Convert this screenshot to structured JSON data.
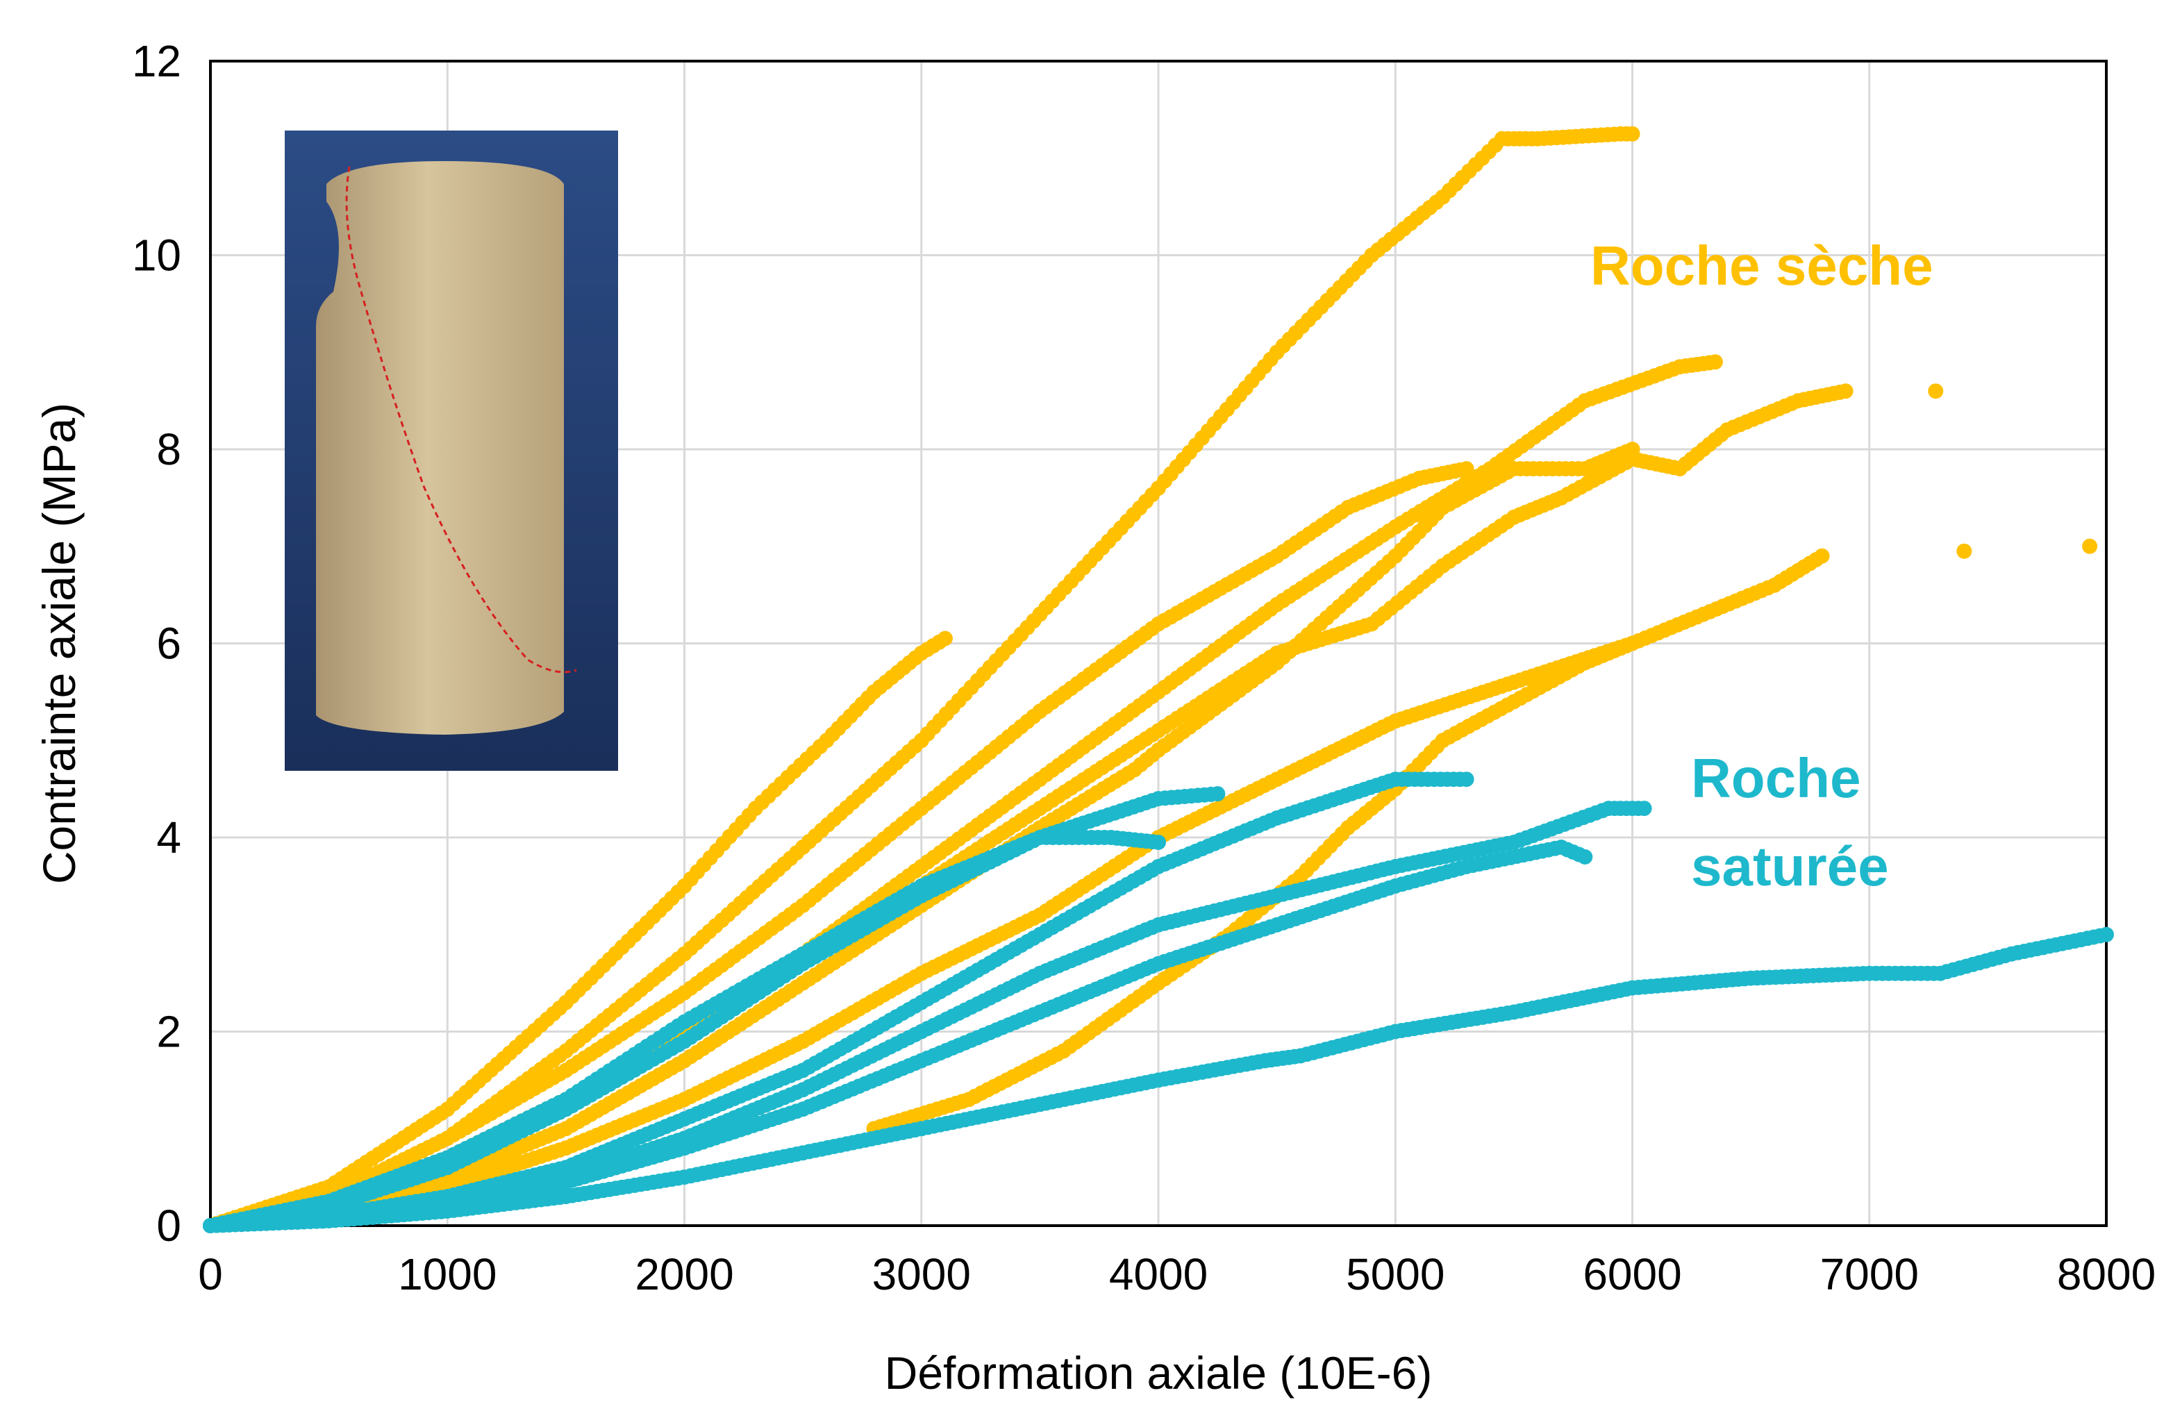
{
  "chart_data": {
    "type": "scatter",
    "xlabel": "Déformation axiale (10E-6)",
    "ylabel": "Contrainte axiale (MPa)",
    "xlim": [
      0,
      8000
    ],
    "ylim": [
      0,
      12
    ],
    "x_ticks": [
      0,
      1000,
      2000,
      3000,
      4000,
      5000,
      6000,
      7000,
      8000
    ],
    "y_ticks": [
      0,
      2,
      4,
      6,
      8,
      10,
      12
    ],
    "grid": true,
    "legend": "none",
    "annotations": [
      {
        "text": "Roche sèche",
        "color": "#FFC000",
        "anchor": "upper-right"
      },
      {
        "text": "Roche",
        "color": "#1EB8CC",
        "anchor": "middle-right"
      },
      {
        "text": "saturée",
        "color": "#1EB8CC",
        "anchor": "middle-right"
      }
    ],
    "inset_image": "fractured-rock-core-photo",
    "colors": {
      "dry": "#FFC000",
      "saturated": "#1EB8CC"
    },
    "series": [
      {
        "group": "dry",
        "x": [
          0,
          500,
          1000,
          1500,
          2000,
          2300,
          2600,
          2800,
          3000,
          3100
        ],
        "y": [
          0,
          0.4,
          1.2,
          2.3,
          3.5,
          4.3,
          5.0,
          5.5,
          5.9,
          6.05
        ]
      },
      {
        "group": "dry",
        "x": [
          0,
          500,
          1000,
          1500,
          2000,
          2500,
          3000,
          3500,
          4000,
          4500,
          4900,
          5200,
          5450,
          5600,
          5950,
          6000
        ],
        "y": [
          0,
          0.3,
          0.9,
          1.8,
          2.8,
          3.9,
          5.0,
          6.3,
          7.6,
          9.0,
          10.0,
          10.6,
          11.2,
          11.2,
          11.25,
          11.25
        ]
      },
      {
        "group": "dry",
        "x": [
          0,
          500,
          1000,
          1500,
          2000,
          2500,
          3000,
          3500,
          4000,
          4500,
          4800,
          5100,
          5300
        ],
        "y": [
          0,
          0.3,
          0.9,
          1.6,
          2.4,
          3.3,
          4.3,
          5.3,
          6.2,
          6.9,
          7.4,
          7.7,
          7.8
        ]
      },
      {
        "group": "dry",
        "x": [
          0,
          500,
          1000,
          1500,
          2000,
          2500,
          3000,
          3500,
          4000,
          4500,
          5000,
          5400,
          5800,
          6200,
          6350
        ],
        "y": [
          0,
          0.25,
          0.7,
          1.3,
          2.0,
          2.8,
          3.7,
          4.6,
          5.5,
          6.4,
          7.2,
          7.8,
          8.5,
          8.85,
          8.9
        ]
      },
      {
        "group": "dry",
        "x": [
          0,
          500,
          1000,
          1500,
          2000,
          2500,
          3000,
          3500,
          4000,
          4500,
          4900,
          5200,
          5500,
          5700,
          6000,
          6200,
          6400,
          6700,
          6900
        ],
        "y": [
          0,
          0.2,
          0.6,
          1.2,
          1.9,
          2.7,
          3.5,
          4.3,
          5.1,
          5.9,
          6.2,
          6.8,
          7.3,
          7.5,
          7.9,
          7.8,
          8.2,
          8.5,
          8.6
        ]
      },
      {
        "group": "dry",
        "x": [
          0,
          500,
          1000,
          1500,
          2000,
          2500,
          3000,
          3500,
          3900,
          4000,
          4500,
          5000,
          5200,
          5500,
          5800,
          6000
        ],
        "y": [
          0,
          0.2,
          0.5,
          1.0,
          1.7,
          2.5,
          3.3,
          4.1,
          4.7,
          4.9,
          5.8,
          6.9,
          7.4,
          7.8,
          7.8,
          8.0
        ]
      },
      {
        "group": "dry",
        "x": [
          0,
          500,
          1000,
          1500,
          2000,
          2500,
          3000,
          3500,
          4000,
          4500,
          5000,
          5500,
          6000,
          6300,
          6600,
          6800
        ],
        "y": [
          0,
          0.15,
          0.4,
          0.8,
          1.3,
          1.9,
          2.6,
          3.2,
          4.0,
          4.6,
          5.2,
          5.6,
          6.0,
          6.3,
          6.6,
          6.9
        ]
      },
      {
        "group": "dry",
        "x": [
          2800,
          3200,
          3600,
          4000,
          4300,
          4600,
          4800,
          5000,
          5200,
          5500,
          5800,
          6000
        ],
        "y": [
          1.0,
          1.3,
          1.8,
          2.5,
          3.0,
          3.6,
          4.1,
          4.5,
          5.0,
          5.4,
          5.8,
          6.0
        ]
      },
      {
        "group": "dry",
        "x": [
          7280,
          7400,
          7930
        ],
        "y": [
          8.6,
          6.95,
          7.0
        ]
      },
      {
        "group": "saturated",
        "x": [
          0,
          500,
          1000,
          1500,
          2000,
          2500,
          3000,
          3500,
          4000,
          4250
        ],
        "y": [
          0,
          0.2,
          0.6,
          1.2,
          1.9,
          2.7,
          3.4,
          4.0,
          4.4,
          4.45
        ]
      },
      {
        "group": "saturated",
        "x": [
          0,
          500,
          1000,
          1500,
          2000,
          2500,
          3000,
          3500,
          3800,
          4000
        ],
        "y": [
          0,
          0.25,
          0.7,
          1.3,
          2.1,
          2.8,
          3.5,
          4.0,
          4.0,
          3.95
        ]
      },
      {
        "group": "saturated",
        "x": [
          0,
          500,
          1000,
          1500,
          2000,
          2500,
          3000,
          3500,
          4000,
          4500,
          5000,
          5300
        ],
        "y": [
          0,
          0.1,
          0.3,
          0.6,
          1.1,
          1.6,
          2.3,
          3.0,
          3.7,
          4.2,
          4.6,
          4.6
        ]
      },
      {
        "group": "saturated",
        "x": [
          0,
          500,
          1000,
          1500,
          2000,
          2500,
          3000,
          3500,
          4000,
          4500,
          5000,
          5500,
          5900,
          6050
        ],
        "y": [
          0,
          0.1,
          0.25,
          0.5,
          0.9,
          1.4,
          2.0,
          2.6,
          3.1,
          3.4,
          3.7,
          3.95,
          4.3,
          4.3
        ]
      },
      {
        "group": "saturated",
        "x": [
          0,
          500,
          1000,
          1500,
          2000,
          2500,
          3000,
          3500,
          4000,
          4500,
          5000,
          5300,
          5700,
          5800
        ],
        "y": [
          0,
          0.08,
          0.2,
          0.45,
          0.8,
          1.2,
          1.7,
          2.2,
          2.7,
          3.1,
          3.5,
          3.7,
          3.9,
          3.8
        ]
      },
      {
        "group": "saturated",
        "x": [
          0,
          500,
          1000,
          1500,
          2000,
          2500,
          3000,
          3500,
          4000,
          4450,
          4600,
          5000,
          5500,
          6000,
          6500,
          7000,
          7300,
          7600,
          8000
        ],
        "y": [
          0,
          0.05,
          0.15,
          0.3,
          0.5,
          0.75,
          1.0,
          1.25,
          1.5,
          1.7,
          1.75,
          2.0,
          2.2,
          2.45,
          2.55,
          2.6,
          2.6,
          2.8,
          3.0
        ]
      }
    ]
  }
}
